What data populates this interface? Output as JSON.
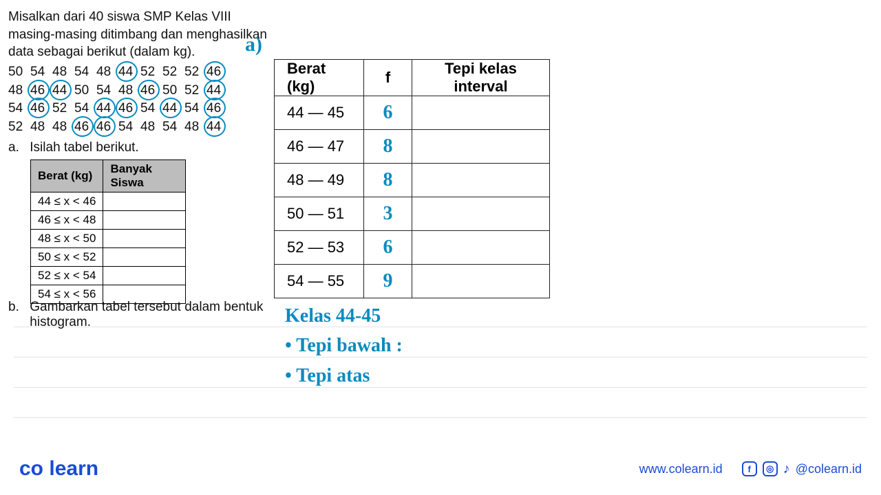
{
  "colors": {
    "handwriting": "#0a8bbf",
    "brand": "#1a4bd6",
    "table_header_bg": "#bdbdbd",
    "rule_line": "#c7c7c7",
    "border": "#000000"
  },
  "problem": {
    "text": "Misalkan dari 40 siswa SMP Kelas VIII masing-masing ditimbang dan menghasilkan data sebagai berikut (dalam kg)."
  },
  "data_rows": [
    [
      {
        "v": "50"
      },
      {
        "v": "54"
      },
      {
        "v": "48"
      },
      {
        "v": "54"
      },
      {
        "v": "48"
      },
      {
        "v": "44",
        "c": true
      },
      {
        "v": "52"
      },
      {
        "v": "52"
      },
      {
        "v": "52"
      },
      {
        "v": "46",
        "c": true
      }
    ],
    [
      {
        "v": "48"
      },
      {
        "v": "46",
        "c": true
      },
      {
        "v": "44",
        "c": true
      },
      {
        "v": "50"
      },
      {
        "v": "54"
      },
      {
        "v": "48"
      },
      {
        "v": "46",
        "c": true
      },
      {
        "v": "50"
      },
      {
        "v": "52"
      },
      {
        "v": "44",
        "c": true
      }
    ],
    [
      {
        "v": "54"
      },
      {
        "v": "46",
        "c": true
      },
      {
        "v": "52"
      },
      {
        "v": "54"
      },
      {
        "v": "44",
        "c": true
      },
      {
        "v": "46",
        "c": true
      },
      {
        "v": "54"
      },
      {
        "v": "44",
        "c": true
      },
      {
        "v": "54"
      },
      {
        "v": "46",
        "c": true
      }
    ],
    [
      {
        "v": "52"
      },
      {
        "v": "48"
      },
      {
        "v": "48"
      },
      {
        "v": "46",
        "c": true
      },
      {
        "v": "46",
        "c": true
      },
      {
        "v": "54"
      },
      {
        "v": "48"
      },
      {
        "v": "54"
      },
      {
        "v": "48"
      },
      {
        "v": "44",
        "c": true
      }
    ]
  ],
  "hand_label_a": "a)",
  "task_a": {
    "label": "a.",
    "text": "Isilah tabel berikut."
  },
  "small_table": {
    "headers": [
      "Berat (kg)",
      "Banyak Siswa"
    ],
    "rows": [
      {
        "range": "44 ≤ x < 46",
        "count": ""
      },
      {
        "range": "46 ≤ x < 48",
        "count": ""
      },
      {
        "range": "48 ≤ x < 50",
        "count": ""
      },
      {
        "range": "50 ≤ x < 52",
        "count": ""
      },
      {
        "range": "52 ≤ x < 54",
        "count": ""
      },
      {
        "range": "54 ≤ x < 56",
        "count": ""
      }
    ]
  },
  "task_b": {
    "label": "b.",
    "text": "Gambarkan tabel tersebut dalam bentuk histogram."
  },
  "big_table": {
    "headers": [
      "Berat (kg)",
      "f",
      "Tepi kelas interval"
    ],
    "rows": [
      {
        "range": "44 — 45",
        "f": "6",
        "tepi": ""
      },
      {
        "range": "46 — 47",
        "f": "8",
        "tepi": ""
      },
      {
        "range": "48 — 49",
        "f": "8",
        "tepi": ""
      },
      {
        "range": "50 — 51",
        "f": "3",
        "tepi": ""
      },
      {
        "range": "52 — 53",
        "f": "6",
        "tepi": ""
      },
      {
        "range": "54 — 55",
        "f": "9",
        "tepi": ""
      }
    ]
  },
  "hand_notes": {
    "line1": "Kelas  44-45",
    "line2": "• Tepi bawah :",
    "line3": "• Tepi atas"
  },
  "footer": {
    "logo_co": "co",
    "logo_learn": "learn",
    "url": "www.colearn.id",
    "handle": "@colearn.id"
  }
}
